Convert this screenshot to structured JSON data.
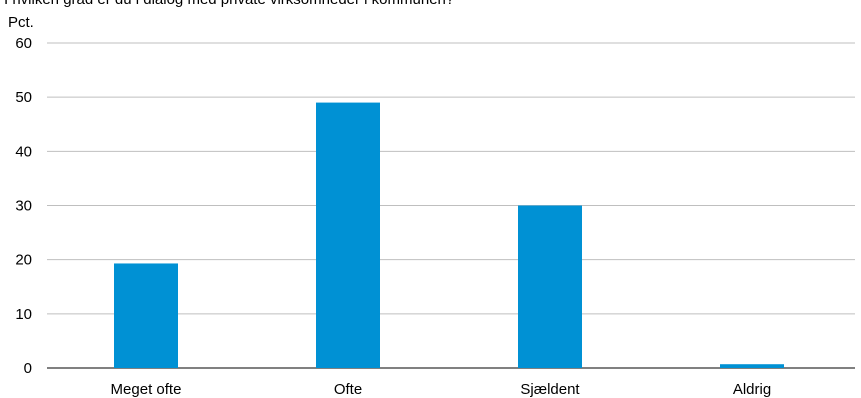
{
  "chart_data": {
    "type": "bar",
    "title": "I hvilken grad er du i dialog med private virksomheder i kommunen?",
    "unit_label": "Pct.",
    "categories": [
      "Meget ofte",
      "Ofte",
      "Sjældent",
      "Aldrig"
    ],
    "values": [
      19.3,
      49,
      30,
      0.7
    ],
    "ylim": [
      0,
      60
    ],
    "yticks": [
      0,
      10,
      20,
      30,
      40,
      50,
      60
    ],
    "grid": true,
    "bar_color": "#0091d4"
  }
}
